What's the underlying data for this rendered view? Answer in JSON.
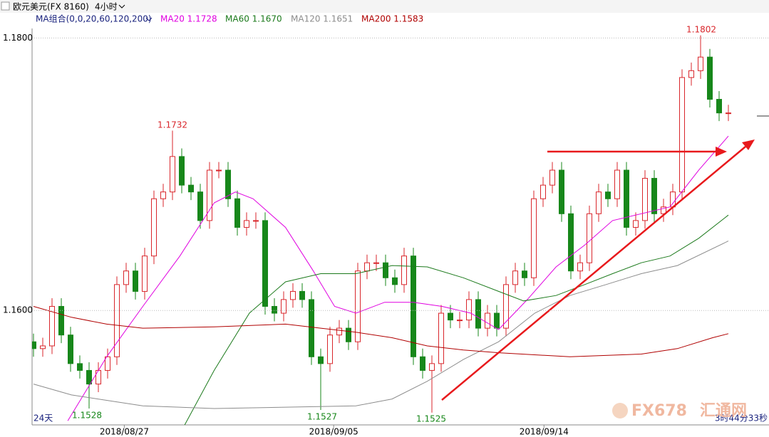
{
  "chart_data": {
    "type": "candlestick",
    "title": "欧元美元(FX 8160)",
    "period": "4小时",
    "indicator": "MA组合(0,0,20,60,120,200)",
    "open": [
      1.1577,
      1.1572,
      1.1574,
      1.1603,
      1.1582,
      1.1561,
      1.1556,
      1.1546,
      1.1556,
      1.1566,
      1.1619,
      1.1629,
      1.1614,
      1.164,
      1.1682,
      1.1687,
      1.1713,
      1.1692,
      1.1687,
      1.1666,
      1.1703,
      1.1703,
      1.1682,
      1.1661,
      1.1666,
      1.1666,
      1.1603,
      1.1598,
      1.1608,
      1.1614,
      1.1608,
      1.1566,
      1.1561,
      1.1582,
      1.1587,
      1.1577,
      1.1629,
      1.1635,
      1.1635,
      1.1624,
      1.1619,
      1.164,
      1.1566,
      1.1556,
      1.1561,
      1.1598,
      1.1593,
      1.1593,
      1.1608,
      1.1587,
      1.1598,
      1.1587,
      1.1619,
      1.1629,
      1.1624,
      1.1682,
      1.1692,
      1.1703,
      1.1671,
      1.1629,
      1.1635,
      1.1671,
      1.1687,
      1.1682,
      1.1703,
      1.1661,
      1.1666,
      1.1697,
      1.1671,
      1.1676,
      1.1687,
      1.1771,
      1.1776,
      1.1786,
      1.1755,
      1.1745
    ],
    "high": [
      1.1583,
      1.158,
      1.1609,
      1.1609,
      1.1588,
      1.1567,
      1.1562,
      1.1562,
      1.1572,
      1.1625,
      1.1635,
      1.1635,
      1.1646,
      1.1688,
      1.1693,
      1.1732,
      1.1719,
      1.1698,
      1.1693,
      1.1709,
      1.1709,
      1.1709,
      1.1688,
      1.1672,
      1.1672,
      1.1672,
      1.1609,
      1.1614,
      1.162,
      1.162,
      1.1614,
      1.1572,
      1.1588,
      1.1593,
      1.1593,
      1.1635,
      1.1641,
      1.1641,
      1.1641,
      1.163,
      1.1646,
      1.1646,
      1.1572,
      1.1567,
      1.1604,
      1.1604,
      1.1599,
      1.1614,
      1.1614,
      1.1604,
      1.1604,
      1.1625,
      1.1635,
      1.1635,
      1.1688,
      1.1698,
      1.1709,
      1.1709,
      1.1677,
      1.1641,
      1.1677,
      1.1693,
      1.1693,
      1.1709,
      1.1709,
      1.1672,
      1.1703,
      1.1703,
      1.1682,
      1.1693,
      1.1777,
      1.1782,
      1.1802,
      1.1792,
      1.1761,
      1.1751
    ],
    "low": [
      1.1566,
      1.1566,
      1.1568,
      1.1576,
      1.1555,
      1.155,
      1.1528,
      1.154,
      1.155,
      1.156,
      1.1613,
      1.1608,
      1.1608,
      1.1634,
      1.1676,
      1.1681,
      1.1686,
      1.1681,
      1.166,
      1.166,
      1.1697,
      1.1676,
      1.1655,
      1.1655,
      1.166,
      1.1597,
      1.1592,
      1.1592,
      1.1602,
      1.1602,
      1.156,
      1.1527,
      1.1555,
      1.1576,
      1.1571,
      1.1571,
      1.1623,
      1.1629,
      1.1618,
      1.1613,
      1.1613,
      1.156,
      1.155,
      1.1525,
      1.1555,
      1.1587,
      1.1587,
      1.1587,
      1.1581,
      1.1581,
      1.1581,
      1.1581,
      1.1613,
      1.1618,
      1.1618,
      1.1676,
      1.1686,
      1.1665,
      1.1623,
      1.1623,
      1.1629,
      1.1665,
      1.1676,
      1.1676,
      1.1655,
      1.1655,
      1.166,
      1.1665,
      1.1665,
      1.167,
      1.1681,
      1.1765,
      1.177,
      1.1749,
      1.1739,
      1.1739
    ],
    "close": [
      1.1572,
      1.1574,
      1.1603,
      1.1582,
      1.1561,
      1.1556,
      1.1546,
      1.1556,
      1.1566,
      1.1619,
      1.1629,
      1.1614,
      1.164,
      1.1682,
      1.1687,
      1.1713,
      1.1692,
      1.1687,
      1.1666,
      1.1703,
      1.1703,
      1.1682,
      1.1661,
      1.1666,
      1.1666,
      1.1603,
      1.1598,
      1.1608,
      1.1614,
      1.1608,
      1.1566,
      1.1561,
      1.1582,
      1.1587,
      1.1577,
      1.1629,
      1.1635,
      1.1635,
      1.1624,
      1.1619,
      1.164,
      1.1566,
      1.1556,
      1.1561,
      1.1598,
      1.1593,
      1.1593,
      1.1608,
      1.1587,
      1.1598,
      1.1587,
      1.1619,
      1.1629,
      1.1624,
      1.1682,
      1.1692,
      1.1703,
      1.1671,
      1.1629,
      1.1635,
      1.1671,
      1.1687,
      1.1682,
      1.1703,
      1.1661,
      1.1666,
      1.1697,
      1.1671,
      1.1676,
      1.1687,
      1.1771,
      1.1776,
      1.1786,
      1.1755,
      1.1745,
      1.1745
    ],
    "up_color": "#d9262b",
    "down_color": "#17871a",
    "series": [
      {
        "name": "MA20 1.1728",
        "color": "#e000e0",
        "x": [
          3.7,
          7.9,
          11.8,
          15.8,
          19.5,
          21.8,
          23.7,
          27.2,
          30.2,
          32.5,
          34.8,
          37.9,
          41,
          44.1,
          47.2,
          50.2,
          53.3,
          56.4,
          59.5,
          62.5,
          65.6,
          68.7,
          71.8,
          75
        ],
        "values": [
          1.1519,
          1.1566,
          1.1603,
          1.164,
          1.1679,
          1.1687,
          1.1682,
          1.1661,
          1.1629,
          1.1603,
          1.1598,
          1.1606,
          1.1606,
          1.1603,
          1.1598,
          1.1586,
          1.1608,
          1.1632,
          1.1648,
          1.1666,
          1.1671,
          1.1676,
          1.1703,
          1.1728
        ]
      },
      {
        "name": "MA60 1.1670",
        "color": "#1c7a1c",
        "x": [
          16,
          19.5,
          23.3,
          27.2,
          31,
          34.8,
          38.7,
          42.5,
          46.4,
          50.2,
          52.9,
          56.4,
          59.5,
          62.5,
          65.6,
          68.7,
          71.8,
          75
        ],
        "values": [
          1.1512,
          1.1556,
          1.1598,
          1.1621,
          1.1627,
          1.1627,
          1.1633,
          1.1632,
          1.1624,
          1.1614,
          1.1607,
          1.1611,
          1.1619,
          1.1627,
          1.1635,
          1.164,
          1.1653,
          1.167
        ]
      },
      {
        "name": "MA120 1.1651",
        "color": "#8c8c8c",
        "x": [
          0,
          4.1,
          7.9,
          11.8,
          19.5,
          27.2,
          34.8,
          38.7,
          42.5,
          46.4,
          50.2,
          54.1,
          57.9,
          61.8,
          65.6,
          69.5,
          75
        ],
        "values": [
          1.1546,
          1.1538,
          1.1534,
          1.153,
          1.1528,
          1.1529,
          1.153,
          1.1535,
          1.1548,
          1.1564,
          1.1577,
          1.1598,
          1.1611,
          1.1619,
          1.1627,
          1.1633,
          1.1651
        ]
      },
      {
        "name": "MA200 1.1583",
        "color": "#b00000",
        "x": [
          0,
          4.1,
          7.9,
          11.8,
          19.5,
          27.2,
          31,
          34.8,
          38.7,
          42.5,
          46.4,
          50.2,
          57.9,
          65.6,
          69.5,
          73.3,
          75
        ],
        "values": [
          1.1603,
          1.1595,
          1.159,
          1.1587,
          1.1588,
          1.159,
          1.1587,
          1.1584,
          1.158,
          1.1574,
          1.1571,
          1.1569,
          1.1566,
          1.1568,
          1.1572,
          1.158,
          1.1583
        ]
      }
    ],
    "ylim": [
      1.1516,
      1.1807
    ],
    "yticks": [
      {
        "value": 1.18,
        "label": "1.1800"
      },
      {
        "value": 1.16,
        "label": "1.1600"
      }
    ],
    "xticks": [
      {
        "value": 9.8,
        "label": "2018/08/27"
      },
      {
        "value": 32.4,
        "label": "2018/09/05"
      },
      {
        "value": 55.1,
        "label": "2018/09/14"
      }
    ],
    "grid": true,
    "annotations": [
      "1.1802",
      "1.1732",
      "1.1528",
      "1.1527",
      "1.1525"
    ],
    "footer_left": "24天",
    "footer_right": "3时44分33秒",
    "watermark": "FX678",
    "watermark_cn": "汇通网"
  }
}
